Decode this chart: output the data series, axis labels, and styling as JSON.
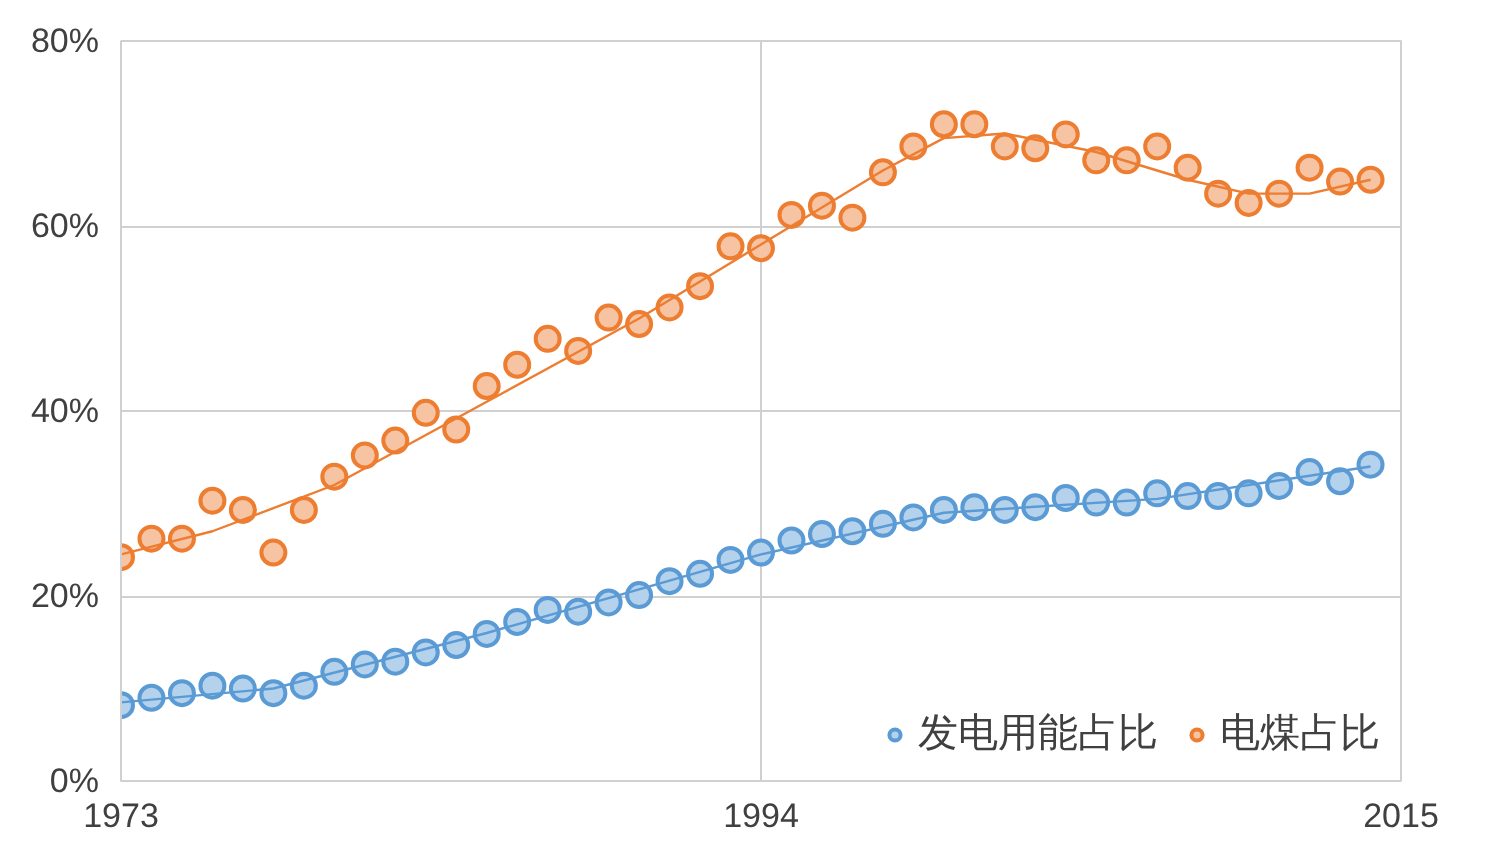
{
  "chart_data": {
    "type": "scatter",
    "x": [
      1973,
      1974,
      1975,
      1976,
      1977,
      1978,
      1979,
      1980,
      1981,
      1982,
      1983,
      1984,
      1985,
      1986,
      1987,
      1988,
      1989,
      1990,
      1991,
      1992,
      1993,
      1994,
      1995,
      1996,
      1997,
      1998,
      1999,
      2000,
      2001,
      2002,
      2003,
      2004,
      2005,
      2006,
      2007,
      2008,
      2009,
      2010,
      2011,
      2012,
      2013,
      2014
    ],
    "series": [
      {
        "name": "发电用能占比",
        "color": "#5b9bd5",
        "marker": "circle",
        "values": [
          8.2,
          9.0,
          9.5,
          10.3,
          10.0,
          9.5,
          10.3,
          11.8,
          12.6,
          12.9,
          13.9,
          14.7,
          15.9,
          17.2,
          18.5,
          18.3,
          19.3,
          20.1,
          21.6,
          22.4,
          23.9,
          24.7,
          26.0,
          26.7,
          27.0,
          27.8,
          28.5,
          29.3,
          29.6,
          29.3,
          29.6,
          30.6,
          30.1,
          30.1,
          31.1,
          30.8,
          30.8,
          31.1,
          31.9,
          33.4,
          32.4,
          34.2
        ]
      },
      {
        "name": "电煤占比",
        "color": "#ed7d31",
        "marker": "circle",
        "values": [
          24.2,
          26.2,
          26.2,
          30.3,
          29.3,
          24.7,
          29.3,
          32.9,
          35.2,
          36.8,
          39.8,
          38.0,
          42.7,
          45.0,
          47.8,
          46.5,
          50.1,
          49.4,
          51.2,
          53.5,
          57.8,
          57.6,
          61.2,
          62.2,
          60.9,
          65.8,
          68.6,
          71.0,
          71.0,
          68.6,
          68.4,
          69.9,
          67.1,
          67.1,
          68.6,
          66.3,
          63.5,
          62.5,
          63.5,
          66.3,
          64.8,
          65.0
        ]
      },
      {
        "type": "line",
        "marker": "none",
        "color": "#5b9bd5",
        "x": [
          1973,
          1978,
          1985,
          1994,
          2000,
          2007,
          2014
        ],
        "values": [
          8.5,
          10,
          16,
          24.5,
          29,
          30.5,
          34
        ]
      },
      {
        "type": "line",
        "marker": "none",
        "color": "#ed7d31",
        "x": [
          1973,
          1976,
          1980,
          1985,
          1990,
          1994,
          1998,
          2000,
          2002,
          2005,
          2008,
          2010,
          2012,
          2014
        ],
        "values": [
          24.5,
          27,
          32,
          41,
          50,
          58,
          66,
          69.5,
          70,
          68,
          65,
          63.5,
          63.5,
          65
        ]
      }
    ],
    "xlim": [
      1973,
      2015
    ],
    "xticks": [
      1973,
      1994,
      2015
    ],
    "ylim": [
      0,
      80
    ],
    "yticks": [
      {
        "value": 0,
        "label": "0%"
      },
      {
        "value": 20,
        "label": "20%"
      },
      {
        "value": 40,
        "label": "40%"
      },
      {
        "value": 60,
        "label": "60%"
      },
      {
        "value": 80,
        "label": "80%"
      }
    ],
    "grid": true,
    "legend": "bottom right"
  }
}
